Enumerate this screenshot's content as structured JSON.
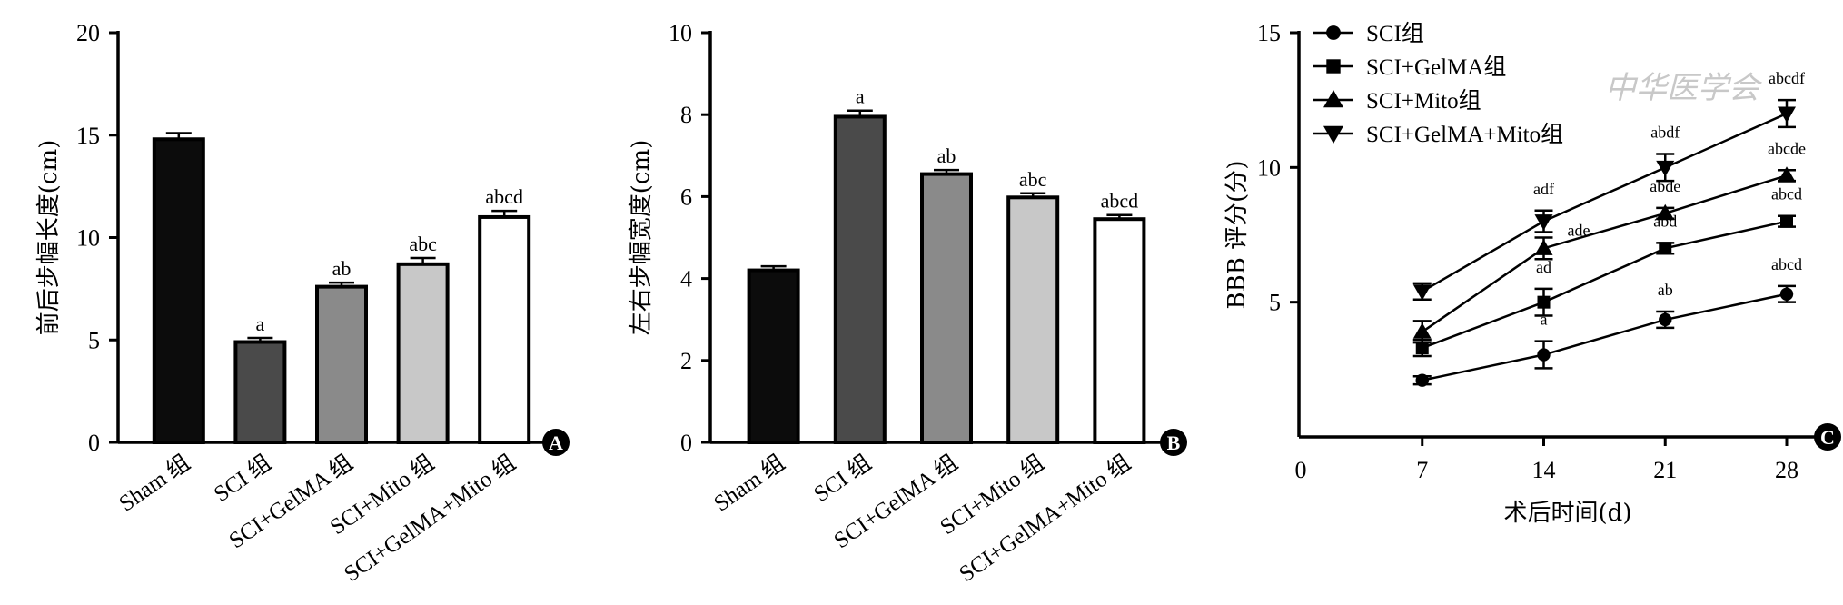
{
  "watermark": "中华医学会",
  "colors": {
    "sham": "#0c0c0c",
    "sci": "#4a4a4a",
    "gelma": "#8a8a8a",
    "mito": "#c8c8c8",
    "gelma_mito": "#ffffff"
  },
  "chart_data": [
    {
      "panel": "A",
      "type": "bar",
      "ylabel": "前后步幅长度(cm)",
      "ylim": [
        0,
        20
      ],
      "yticks": [
        0,
        5,
        10,
        15,
        20
      ],
      "categories": [
        "Sham 组",
        "SCI 组",
        "SCI+GelMA 组",
        "SCI+Mito 组",
        "SCI+GelMA+Mito 组"
      ],
      "values": [
        14.8,
        4.9,
        7.6,
        8.7,
        11.0
      ],
      "errors": [
        0.3,
        0.2,
        0.2,
        0.3,
        0.3
      ],
      "annotations": [
        "",
        "a",
        "ab",
        "abc",
        "abcd"
      ]
    },
    {
      "panel": "B",
      "type": "bar",
      "ylabel": "左右步幅宽度(cm)",
      "ylim": [
        0,
        10
      ],
      "yticks": [
        0,
        2,
        4,
        6,
        8,
        10
      ],
      "categories": [
        "Sham 组",
        "SCI 组",
        "SCI+GelMA 组",
        "SCI+Mito 组",
        "SCI+GelMA+Mito 组"
      ],
      "values": [
        4.2,
        7.95,
        6.55,
        5.98,
        5.45
      ],
      "errors": [
        0.1,
        0.15,
        0.1,
        0.1,
        0.1
      ],
      "annotations": [
        "",
        "a",
        "ab",
        "abc",
        "abcd"
      ]
    },
    {
      "panel": "C",
      "type": "line",
      "ylabel": "BBB 评分(分)",
      "xlabel": "术后时间(d)",
      "xlim": [
        0,
        28
      ],
      "ylim": [
        0,
        15
      ],
      "xticks": [
        0,
        7,
        14,
        21,
        28
      ],
      "yticks": [
        5,
        10,
        15
      ],
      "x": [
        7,
        14,
        21,
        28
      ],
      "series": [
        {
          "name": "SCI组",
          "marker": "circle",
          "values": [
            2.1,
            3.05,
            4.35,
            5.3
          ],
          "errors": [
            0.15,
            0.5,
            0.3,
            0.3
          ],
          "annotations": [
            "",
            "a",
            "ab",
            "abcd"
          ]
        },
        {
          "name": "SCI+GelMA组",
          "marker": "square",
          "values": [
            3.3,
            5.0,
            7.0,
            8.0
          ],
          "errors": [
            0.3,
            0.5,
            0.2,
            0.2
          ],
          "annotations": [
            "",
            "ad",
            "abd",
            "abcd"
          ]
        },
        {
          "name": "SCI+Mito组",
          "marker": "triangle-up",
          "values": [
            3.9,
            7.0,
            8.3,
            9.7
          ],
          "errors": [
            0.4,
            0.4,
            0.2,
            0.2
          ],
          "annotations": [
            "",
            "ade",
            "abde",
            "abcde"
          ]
        },
        {
          "name": "SCI+GelMA+Mito组",
          "marker": "triangle-down",
          "values": [
            5.4,
            8.0,
            10.0,
            12.0
          ],
          "errors": [
            0.3,
            0.4,
            0.5,
            0.5
          ],
          "annotations": [
            "",
            "adf",
            "abdf",
            "abcdf"
          ]
        }
      ]
    }
  ]
}
